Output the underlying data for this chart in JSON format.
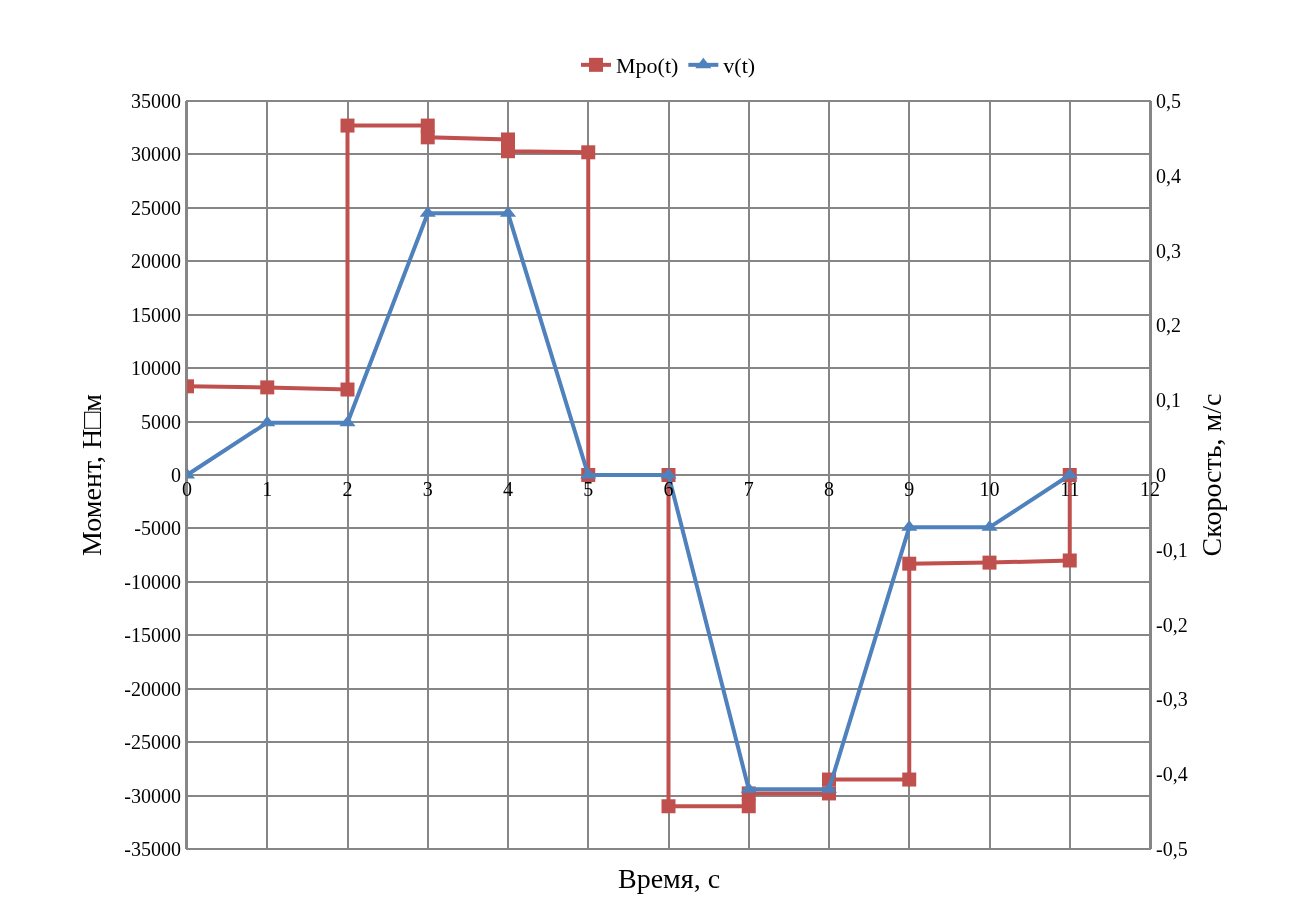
{
  "chart_data": {
    "type": "line",
    "xlabel": "Время, с",
    "ylabel": "Момент, Н□м",
    "y2label": "Скорость, м/с",
    "xlim": [
      0,
      12
    ],
    "xticks": [
      0,
      1,
      2,
      3,
      4,
      5,
      6,
      7,
      8,
      9,
      10,
      11,
      12
    ],
    "ylim": [
      -35000,
      35000
    ],
    "yticks": [
      -35000,
      -30000,
      -25000,
      -20000,
      -15000,
      -10000,
      -5000,
      0,
      5000,
      10000,
      15000,
      20000,
      25000,
      30000,
      35000
    ],
    "y2lim": [
      -0.5,
      0.5
    ],
    "y2ticks": [
      {
        "value": -0.5,
        "label": "-0,5"
      },
      {
        "value": -0.4,
        "label": "-0,4"
      },
      {
        "value": -0.3,
        "label": "-0,3"
      },
      {
        "value": -0.2,
        "label": "-0,2"
      },
      {
        "value": -0.1,
        "label": "-0,1"
      },
      0,
      {
        "value": 0.1,
        "label": "0,1"
      },
      {
        "value": 0.2,
        "label": "0,2"
      },
      {
        "value": 0.3,
        "label": "0,3"
      },
      {
        "value": 0.4,
        "label": "0,4"
      },
      {
        "value": 0.5,
        "label": "0,5"
      }
    ],
    "grid": true,
    "legend": "top",
    "series": [
      {
        "name": "Mpo(t)",
        "color": "#c0504d",
        "marker": "square",
        "x": [
          0,
          1,
          2,
          2,
          3,
          3,
          4,
          4,
          5,
          5,
          6,
          6,
          7,
          7,
          8,
          8,
          9,
          9,
          10,
          11,
          11
        ],
        "values": [
          8300,
          8200,
          8000,
          32700,
          32700,
          31600,
          31400,
          30300,
          30200,
          0,
          0,
          -31000,
          -31000,
          -29800,
          -29800,
          -28500,
          -28500,
          -8300,
          -8200,
          -8000,
          0
        ]
      },
      {
        "name": "v(t)",
        "color": "#4f81bd",
        "marker": "triangle",
        "axis": "y2",
        "x": [
          0,
          1,
          2,
          3,
          4,
          5,
          6,
          7,
          8,
          9,
          10,
          11
        ],
        "values": [
          0,
          0.07,
          0.07,
          0.35,
          0.35,
          0,
          0,
          -0.42,
          -0.42,
          -0.07,
          -0.07,
          0
        ]
      }
    ]
  }
}
